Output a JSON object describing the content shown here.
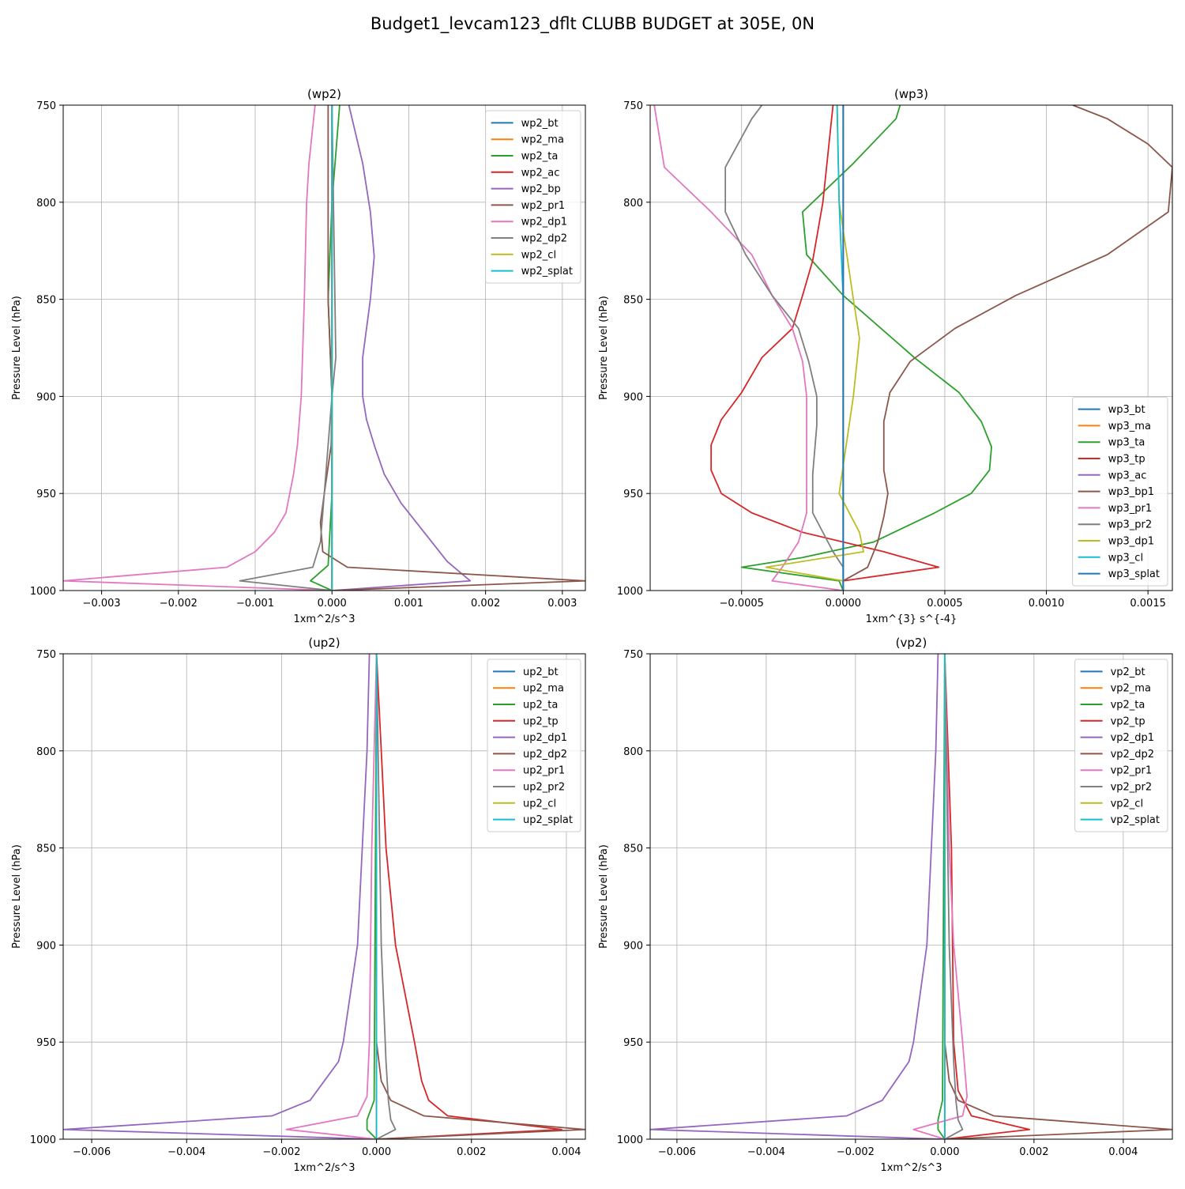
{
  "figure_title": "Budget1_levcam123_dflt CLUBB BUDGET at 305E, 0N",
  "colors": [
    "#1f77b4",
    "#ff7f0e",
    "#2ca02c",
    "#d62728",
    "#9467bd",
    "#8c564b",
    "#e377c2",
    "#7f7f7f",
    "#bcbd22",
    "#17becf"
  ],
  "chart_data": [
    {
      "type": "line",
      "title": "(wp2)",
      "xlabel": "1xm^2/s^3",
      "ylabel": "Pressure Level (hPa)",
      "xlim": [
        -0.0035,
        0.0033
      ],
      "ylim": [
        1000,
        750
      ],
      "xticks": [
        -0.003,
        -0.002,
        -0.001,
        0.0,
        0.001,
        0.002,
        0.003
      ],
      "xtick_labels": [
        "−0.003",
        "−0.002",
        "−0.001",
        "0.000",
        "0.001",
        "0.002",
        "0.003"
      ],
      "yticks": [
        750,
        800,
        850,
        900,
        950,
        1000
      ],
      "ytick_labels": [
        "750",
        "800",
        "850",
        "900",
        "950",
        "1000"
      ],
      "legend_loc": "upper-right",
      "series": [
        {
          "name": "wp2_bt",
          "p": [
            750,
            1000
          ],
          "v": [
            0.0,
            0.0
          ]
        },
        {
          "name": "wp2_ma",
          "p": [
            750,
            1000
          ],
          "v": [
            0.0,
            0.0
          ]
        },
        {
          "name": "wp2_ta",
          "p": [
            750,
            800,
            850,
            900,
            950,
            987,
            995,
            1000
          ],
          "v": [
            0.0001,
            0.0,
            -5e-05,
            0.0,
            0.0,
            -5e-05,
            -0.00028,
            0.0
          ]
        },
        {
          "name": "wp2_ac",
          "p": [
            750,
            1000
          ],
          "v": [
            0.0,
            0.0
          ]
        },
        {
          "name": "wp2_bp",
          "p": [
            750,
            780,
            805,
            828,
            850,
            880,
            900,
            912,
            925,
            940,
            955,
            970,
            985,
            995,
            1000
          ],
          "v": [
            0.00022,
            0.0004,
            0.0005,
            0.00055,
            0.0005,
            0.0004,
            0.0004,
            0.00045,
            0.00055,
            0.00068,
            0.0009,
            0.0012,
            0.0015,
            0.0018,
            0.0
          ]
        },
        {
          "name": "wp2_pr1",
          "p": [
            750,
            800,
            850,
            900,
            925,
            950,
            965,
            980,
            988,
            995,
            1000
          ],
          "v": [
            -5e-05,
            -5e-05,
            -5e-05,
            0.0,
            -1e-05,
            -0.0001,
            -0.00015,
            -0.00012,
            0.0002,
            0.0033,
            0.0
          ]
        },
        {
          "name": "wp2_dp1",
          "p": [
            750,
            780,
            800,
            850,
            900,
            925,
            940,
            960,
            970,
            980,
            988,
            995,
            1000
          ],
          "v": [
            -0.00022,
            -0.0003,
            -0.00033,
            -0.00036,
            -0.0004,
            -0.00045,
            -0.0005,
            -0.0006,
            -0.00075,
            -0.001,
            -0.00137,
            -0.0035,
            0.0
          ]
        },
        {
          "name": "wp2_dp2",
          "p": [
            750,
            880,
            900,
            950,
            975,
            988,
            995,
            1000
          ],
          "v": [
            0.0,
            5e-05,
            0.0,
            -0.0001,
            -0.00015,
            -0.00025,
            -0.0012,
            0.0
          ]
        },
        {
          "name": "wp2_cl",
          "p": [
            750,
            1000
          ],
          "v": [
            0.0,
            0.0
          ]
        },
        {
          "name": "wp2_splat",
          "p": [
            750,
            1000
          ],
          "v": [
            0.0,
            0.0
          ]
        }
      ]
    },
    {
      "type": "line",
      "title": "(wp3)",
      "xlabel": "1xm^{3} s^{-4}",
      "ylabel": "Pressure Level (hPa)",
      "xlim": [
        -0.00095,
        0.00162
      ],
      "ylim": [
        1000,
        750
      ],
      "xticks": [
        -0.0005,
        0.0,
        0.0005,
        0.001,
        0.0015
      ],
      "xtick_labels": [
        "−0.0005",
        "0.0000",
        "0.0005",
        "0.0010",
        "0.0015"
      ],
      "yticks": [
        750,
        800,
        850,
        900,
        950,
        1000
      ],
      "ytick_labels": [
        "750",
        "800",
        "850",
        "900",
        "950",
        "1000"
      ],
      "legend_loc": "lower-right",
      "series": [
        {
          "name": "wp3_bt",
          "p": [
            750,
            1000
          ],
          "v": [
            0.0,
            0.0
          ]
        },
        {
          "name": "wp3_ma",
          "p": [
            750,
            1000
          ],
          "v": [
            0.0,
            0.0
          ]
        },
        {
          "name": "wp3_ta",
          "p": [
            750,
            757,
            780,
            805,
            827,
            848,
            880,
            898,
            913,
            926,
            938,
            950,
            960,
            975,
            983,
            988,
            995,
            1000
          ],
          "v": [
            0.00028,
            0.00026,
            5e-05,
            -0.0002,
            -0.00018,
            0.0,
            0.00035,
            0.00057,
            0.00068,
            0.00073,
            0.00072,
            0.00063,
            0.00045,
            0.00015,
            -0.0002,
            -0.0005,
            -2e-05,
            0.0
          ]
        },
        {
          "name": "wp3_tp",
          "p": [
            750,
            800,
            830,
            848,
            865,
            880,
            898,
            912,
            925,
            938,
            950,
            960,
            970,
            980,
            988,
            995,
            1000
          ],
          "v": [
            -5e-05,
            -0.0001,
            -0.00015,
            -0.0002,
            -0.00025,
            -0.0004,
            -0.0005,
            -0.0006,
            -0.00065,
            -0.00065,
            -0.0006,
            -0.00045,
            -0.0002,
            0.0002,
            0.00047,
            0.0,
            0.0
          ]
        },
        {
          "name": "wp3_ac",
          "p": [
            750,
            1000
          ],
          "v": [
            0.0,
            0.0
          ]
        },
        {
          "name": "wp3_bp1",
          "p": [
            750,
            757,
            770,
            782,
            805,
            827,
            848,
            865,
            882,
            898,
            913,
            926,
            938,
            950,
            962,
            975,
            988,
            995,
            1000
          ],
          "v": [
            0.00113,
            0.0013,
            0.0015,
            0.00162,
            0.0016,
            0.0013,
            0.00085,
            0.00055,
            0.00033,
            0.00023,
            0.0002,
            0.0002,
            0.0002,
            0.00022,
            0.0002,
            0.00017,
            0.00012,
            0.0,
            0.0
          ]
        },
        {
          "name": "wp3_pr1",
          "p": [
            750,
            782,
            805,
            827,
            848,
            865,
            882,
            900,
            940,
            960,
            975,
            988,
            995,
            1000
          ],
          "v": [
            -0.00093,
            -0.00088,
            -0.00065,
            -0.00045,
            -0.00035,
            -0.00025,
            -0.0002,
            -0.00018,
            -0.00018,
            -0.00018,
            -0.00022,
            -0.0003,
            -0.00035,
            0.0
          ]
        },
        {
          "name": "wp3_pr2",
          "p": [
            750,
            757,
            782,
            805,
            827,
            848,
            865,
            882,
            900,
            915,
            940,
            960,
            980,
            988,
            995,
            1000
          ],
          "v": [
            -0.0004,
            -0.00045,
            -0.00058,
            -0.00058,
            -0.00048,
            -0.00035,
            -0.00022,
            -0.00017,
            -0.00013,
            -0.00013,
            -0.00015,
            -0.00015,
            -5e-05,
            0.0,
            0.0,
            0.0
          ]
        },
        {
          "name": "wp3_dp1",
          "p": [
            750,
            800,
            850,
            870,
            900,
            950,
            970,
            980,
            988,
            995,
            1000
          ],
          "v": [
            -3e-05,
            -2e-05,
            5e-05,
            8e-05,
            5e-05,
            -2e-05,
            8e-05,
            0.0001,
            -0.00038,
            0.0,
            0.0
          ]
        },
        {
          "name": "wp3_cl",
          "p": [
            750,
            800,
            850,
            1000
          ],
          "v": [
            -3e-05,
            -2e-05,
            0.0,
            0.0
          ]
        },
        {
          "name": "wp3_splat",
          "p": [
            750,
            1000
          ],
          "v": [
            0.0,
            0.0
          ]
        }
      ]
    },
    {
      "type": "line",
      "title": "(up2)",
      "xlabel": "1xm^2/s^3",
      "ylabel": "Pressure Level (hPa)",
      "xlim": [
        -0.0066,
        0.0044
      ],
      "ylim": [
        1000,
        750
      ],
      "xticks": [
        -0.006,
        -0.004,
        -0.002,
        0.0,
        0.002,
        0.004
      ],
      "xtick_labels": [
        "−0.006",
        "−0.004",
        "−0.002",
        "0.000",
        "0.002",
        "0.004"
      ],
      "yticks": [
        750,
        800,
        850,
        900,
        950,
        1000
      ],
      "ytick_labels": [
        "750",
        "800",
        "850",
        "900",
        "950",
        "1000"
      ],
      "legend_loc": "upper-right",
      "series": [
        {
          "name": "up2_bt",
          "p": [
            750,
            1000
          ],
          "v": [
            0.0,
            0.0
          ]
        },
        {
          "name": "up2_ma",
          "p": [
            750,
            1000
          ],
          "v": [
            0.0,
            0.0
          ]
        },
        {
          "name": "up2_ta",
          "p": [
            750,
            980,
            990,
            995,
            1000
          ],
          "v": [
            0.0,
            -5e-05,
            -0.0002,
            -0.0002,
            0.0
          ]
        },
        {
          "name": "up2_tp",
          "p": [
            750,
            800,
            850,
            900,
            950,
            970,
            980,
            988,
            995,
            1000
          ],
          "v": [
            0.0,
            0.0001,
            0.0002,
            0.0004,
            0.0008,
            0.00095,
            0.0011,
            0.0015,
            0.0039,
            0.0
          ]
        },
        {
          "name": "up2_dp1",
          "p": [
            750,
            800,
            850,
            900,
            950,
            960,
            970,
            980,
            988,
            995,
            1000
          ],
          "v": [
            -0.00015,
            -0.0002,
            -0.0003,
            -0.0004,
            -0.0007,
            -0.0008,
            -0.0011,
            -0.0014,
            -0.0022,
            -0.0066,
            0.0
          ]
        },
        {
          "name": "up2_dp2",
          "p": [
            750,
            900,
            950,
            970,
            980,
            988,
            995,
            1000
          ],
          "v": [
            0.0,
            0.0,
            0.0,
            0.0001,
            0.0003,
            0.001,
            0.0044,
            0.0
          ]
        },
        {
          "name": "up2_pr1",
          "p": [
            750,
            850,
            950,
            978,
            988,
            995,
            1000
          ],
          "v": [
            0.0,
            -0.0001,
            -0.00015,
            -0.0002,
            -0.0004,
            -0.0019,
            0.0
          ]
        },
        {
          "name": "up2_pr2",
          "p": [
            750,
            900,
            960,
            980,
            990,
            995,
            1000
          ],
          "v": [
            0.0,
            0.0001,
            0.0002,
            0.00025,
            0.0003,
            0.0004,
            0.0
          ]
        },
        {
          "name": "up2_cl",
          "p": [
            750,
            1000
          ],
          "v": [
            0.0,
            0.0
          ]
        },
        {
          "name": "up2_splat",
          "p": [
            750,
            1000
          ],
          "v": [
            0.0,
            0.0
          ]
        }
      ]
    },
    {
      "type": "line",
      "title": "(vp2)",
      "xlabel": "1xm^2/s^3",
      "ylabel": "Pressure Level (hPa)",
      "xlim": [
        -0.0066,
        0.0051
      ],
      "ylim": [
        1000,
        750
      ],
      "xticks": [
        -0.006,
        -0.004,
        -0.002,
        0.0,
        0.002,
        0.004
      ],
      "xtick_labels": [
        "−0.006",
        "−0.004",
        "−0.002",
        "0.000",
        "0.002",
        "0.004"
      ],
      "yticks": [
        750,
        800,
        850,
        900,
        950,
        1000
      ],
      "ytick_labels": [
        "750",
        "800",
        "850",
        "900",
        "950",
        "1000"
      ],
      "legend_loc": "upper-right",
      "series": [
        {
          "name": "vp2_bt",
          "p": [
            750,
            1000
          ],
          "v": [
            0.0,
            0.0
          ]
        },
        {
          "name": "vp2_ma",
          "p": [
            750,
            1000
          ],
          "v": [
            0.0,
            0.0
          ]
        },
        {
          "name": "vp2_ta",
          "p": [
            750,
            980,
            990,
            995,
            1000
          ],
          "v": [
            0.0,
            -5e-05,
            -0.00015,
            -0.00015,
            0.0
          ]
        },
        {
          "name": "vp2_tp",
          "p": [
            750,
            850,
            950,
            975,
            988,
            995,
            1000
          ],
          "v": [
            0.0,
            0.00015,
            0.0002,
            0.0003,
            0.0006,
            0.0019,
            0.0
          ]
        },
        {
          "name": "vp2_dp1",
          "p": [
            750,
            800,
            850,
            900,
            950,
            960,
            970,
            980,
            988,
            995,
            1000
          ],
          "v": [
            -0.00015,
            -0.0002,
            -0.0003,
            -0.0004,
            -0.0007,
            -0.0008,
            -0.0011,
            -0.0014,
            -0.0022,
            -0.0066,
            0.0
          ]
        },
        {
          "name": "vp2_dp2",
          "p": [
            750,
            950,
            970,
            980,
            988,
            995,
            1000
          ],
          "v": [
            0.0,
            0.0,
            0.0001,
            0.0003,
            0.0011,
            0.0051,
            0.0
          ]
        },
        {
          "name": "vp2_pr1",
          "p": [
            750,
            850,
            900,
            950,
            978,
            988,
            995,
            1000
          ],
          "v": [
            0.0,
            0.0001,
            0.0002,
            0.0004,
            0.0005,
            0.0004,
            -0.0007,
            0.0
          ]
        },
        {
          "name": "vp2_pr2",
          "p": [
            750,
            900,
            960,
            980,
            990,
            995,
            1000
          ],
          "v": [
            0.0,
            0.0001,
            0.0002,
            0.00025,
            0.0003,
            0.0004,
            0.0
          ]
        },
        {
          "name": "vp2_cl",
          "p": [
            750,
            1000
          ],
          "v": [
            0.0,
            0.0
          ]
        },
        {
          "name": "vp2_splat",
          "p": [
            750,
            1000
          ],
          "v": [
            0.0,
            0.0
          ]
        }
      ]
    }
  ]
}
